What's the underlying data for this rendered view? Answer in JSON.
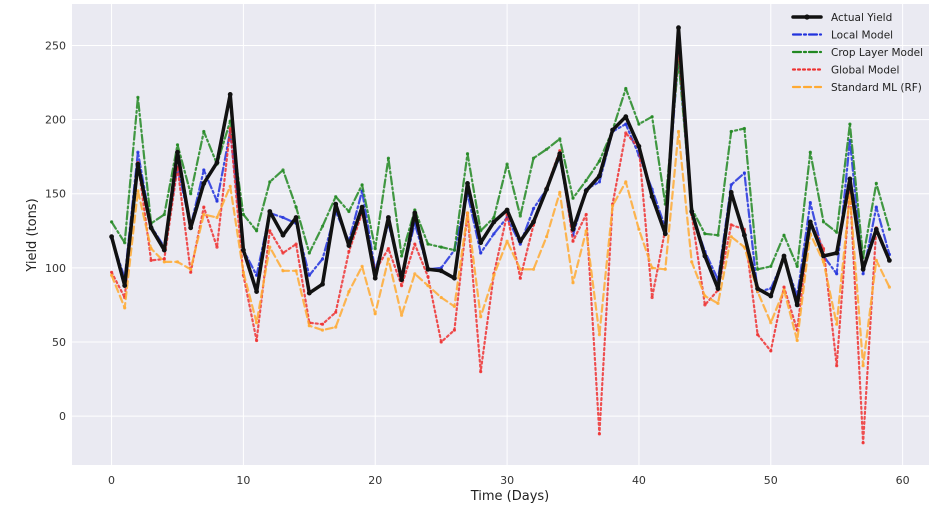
{
  "chart_data": {
    "type": "line",
    "title": "",
    "xlabel": "Time (Days)",
    "ylabel": "Yield (tons)",
    "xlim": [
      -3,
      62
    ],
    "ylim": [
      -33,
      278
    ],
    "xticks": [
      0,
      10,
      20,
      30,
      40,
      50,
      60
    ],
    "yticks": [
      0,
      50,
      100,
      150,
      200,
      250
    ],
    "grid": true,
    "legend_position": "top-right",
    "x": [
      0,
      1,
      2,
      3,
      4,
      5,
      6,
      7,
      8,
      9,
      10,
      11,
      12,
      13,
      14,
      15,
      16,
      17,
      18,
      19,
      20,
      21,
      22,
      23,
      24,
      25,
      26,
      27,
      28,
      29,
      30,
      31,
      32,
      33,
      34,
      35,
      36,
      37,
      38,
      39,
      40,
      41,
      42,
      43,
      44,
      45,
      46,
      47,
      48,
      49,
      50,
      51,
      52,
      53,
      54,
      55,
      56,
      57,
      58,
      59
    ],
    "series": [
      {
        "name": "Actual Yield",
        "color": "#111111",
        "style": "solid",
        "values": [
          121,
          88,
          170,
          127,
          112,
          178,
          127,
          157,
          171,
          217,
          112,
          84,
          138,
          122,
          134,
          83,
          89,
          143,
          115,
          141,
          93,
          134,
          92,
          137,
          99,
          98,
          93,
          157,
          117,
          131,
          139,
          118,
          131,
          153,
          177,
          126,
          152,
          162,
          193,
          202,
          182,
          148,
          123,
          262,
          138,
          108,
          86,
          151,
          122,
          86,
          81,
          108,
          75,
          131,
          108,
          110,
          160,
          99,
          126,
          105
        ]
      },
      {
        "name": "Local Model",
        "color": "#2233dd",
        "style": "dashdot",
        "values": [
          120,
          93,
          178,
          128,
          114,
          168,
          128,
          166,
          145,
          192,
          112,
          95,
          137,
          134,
          130,
          95,
          106,
          138,
          118,
          152,
          98,
          130,
          94,
          130,
          99,
          100,
          112,
          150,
          110,
          123,
          134,
          116,
          140,
          153,
          175,
          122,
          153,
          158,
          192,
          197,
          176,
          153,
          127,
          245,
          137,
          111,
          92,
          156,
          164,
          84,
          86,
          106,
          81,
          144,
          108,
          96,
          186,
          96,
          141,
          109
        ]
      },
      {
        "name": "Crop Layer Model",
        "color": "#228822",
        "style": "dashdot",
        "values": [
          131,
          117,
          215,
          130,
          136,
          183,
          150,
          192,
          170,
          199,
          136,
          125,
          158,
          166,
          141,
          110,
          128,
          148,
          138,
          156,
          113,
          174,
          108,
          139,
          116,
          114,
          112,
          177,
          125,
          134,
          170,
          135,
          174,
          180,
          187,
          147,
          159,
          172,
          193,
          221,
          197,
          202,
          143,
          240,
          140,
          123,
          122,
          192,
          194,
          99,
          101,
          122,
          101,
          178,
          131,
          124,
          197,
          107,
          157,
          126
        ]
      },
      {
        "name": "Global Model",
        "color": "#ee3333",
        "style": "dotted",
        "values": [
          97,
          80,
          171,
          105,
          106,
          168,
          97,
          141,
          114,
          194,
          95,
          51,
          125,
          110,
          116,
          63,
          62,
          70,
          111,
          137,
          98,
          113,
          88,
          116,
          94,
          50,
          58,
          137,
          30,
          96,
          136,
          93,
          129,
          154,
          179,
          118,
          136,
          -12,
          143,
          191,
          181,
          80,
          126,
          250,
          136,
          75,
          85,
          129,
          126,
          55,
          44,
          87,
          58,
          131,
          113,
          34,
          154,
          -18,
          127,
          105
        ]
      },
      {
        "name": "Standard ML (RF)",
        "color": "#ffaa33",
        "style": "dashed",
        "values": [
          95,
          73,
          152,
          113,
          104,
          104,
          99,
          136,
          134,
          155,
          97,
          63,
          114,
          98,
          98,
          61,
          58,
          60,
          84,
          101,
          69,
          106,
          68,
          96,
          88,
          80,
          74,
          137,
          67,
          95,
          118,
          99,
          99,
          121,
          151,
          90,
          125,
          55,
          142,
          158,
          126,
          100,
          99,
          192,
          104,
          81,
          76,
          121,
          114,
          84,
          63,
          85,
          51,
          123,
          104,
          62,
          149,
          34,
          105,
          87
        ]
      }
    ]
  }
}
